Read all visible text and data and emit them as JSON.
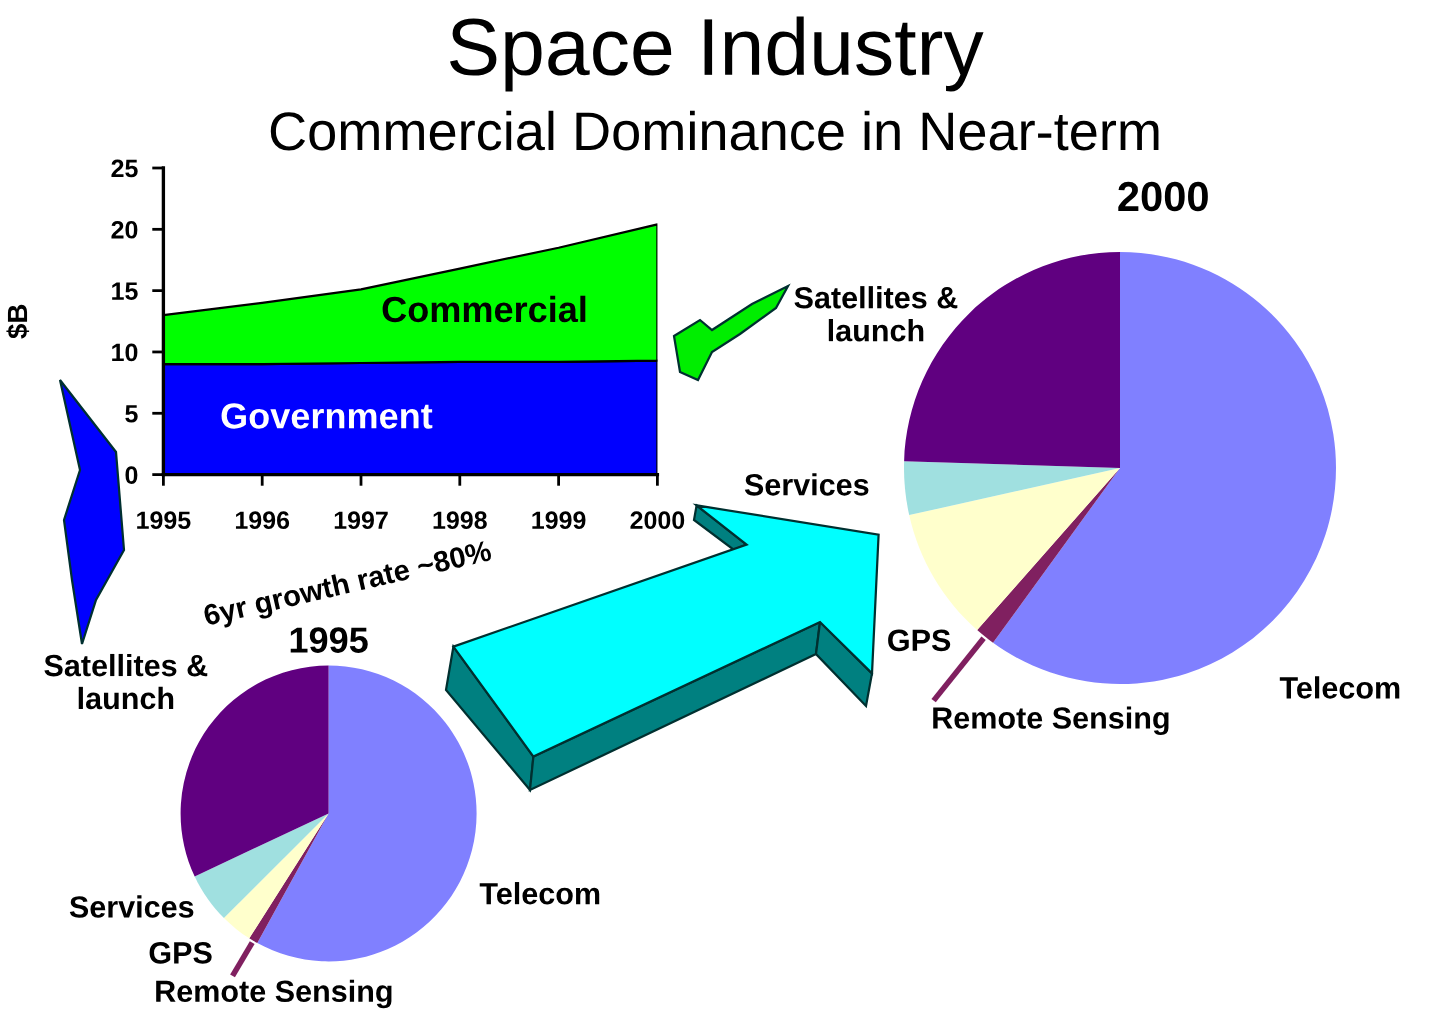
{
  "chart_data": [
    {
      "type": "area",
      "title": "Space Industry",
      "subtitle": "Commercial Dominance in Near-term",
      "ylabel": "$B",
      "x": [
        1995,
        1996,
        1997,
        1998,
        1999,
        2000
      ],
      "stacked": true,
      "series": [
        {
          "name": "Government",
          "color": "#0000ff",
          "values": [
            9,
            9,
            9.1,
            9.2,
            9.2,
            9.3
          ]
        },
        {
          "name": "Commercial",
          "color": "#00ff00",
          "values": [
            4,
            5,
            6,
            7.6,
            9.3,
            11.1
          ]
        }
      ],
      "xlim": [
        1995,
        2000
      ],
      "xticks": [
        1995,
        1996,
        1997,
        1998,
        1999,
        2000
      ],
      "ylim": [
        0,
        25
      ],
      "yticks": [
        0,
        5,
        10,
        15,
        20,
        25
      ]
    },
    {
      "type": "pie",
      "title": "2000",
      "categories": [
        "Telecom",
        "Remote Sensing",
        "GPS",
        "Services",
        "Satellites &\nlaunch"
      ],
      "values": [
        60,
        1.5,
        10,
        4,
        24.5
      ],
      "colors": [
        "#8080ff",
        "#802060",
        "#ffffcc",
        "#a0e0e0",
        "#600080"
      ]
    },
    {
      "type": "pie",
      "title": "1995",
      "categories": [
        "Telecom",
        "Remote Sensing",
        "GPS",
        "Services",
        "Satellites &\nlaunch"
      ],
      "values": [
        58,
        1,
        3.5,
        5.5,
        32
      ],
      "colors": [
        "#8080ff",
        "#802060",
        "#ffffcc",
        "#a0e0e0",
        "#600080"
      ],
      "annotations": [
        "6yr growth rate ~80%"
      ]
    }
  ]
}
